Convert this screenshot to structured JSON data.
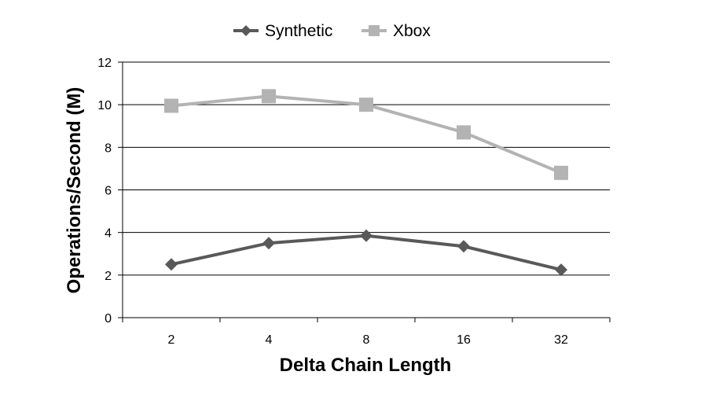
{
  "chart_data": {
    "type": "line",
    "title": "",
    "xlabel": "Delta Chain Length",
    "ylabel": "Operations/Second (M)",
    "categories": [
      "2",
      "4",
      "8",
      "16",
      "32"
    ],
    "ylim": [
      0,
      12
    ],
    "yticks": [
      0,
      2,
      4,
      6,
      8,
      10,
      12
    ],
    "grid": true,
    "legend_position": "top-center",
    "series": [
      {
        "name": "Synthetic",
        "values": [
          2.5,
          3.5,
          3.85,
          3.35,
          2.25
        ],
        "color": "#595959",
        "marker": "diamond"
      },
      {
        "name": "Xbox",
        "values": [
          9.95,
          10.4,
          10.0,
          8.7,
          6.8
        ],
        "color": "#b3b3b3",
        "marker": "square"
      }
    ]
  }
}
